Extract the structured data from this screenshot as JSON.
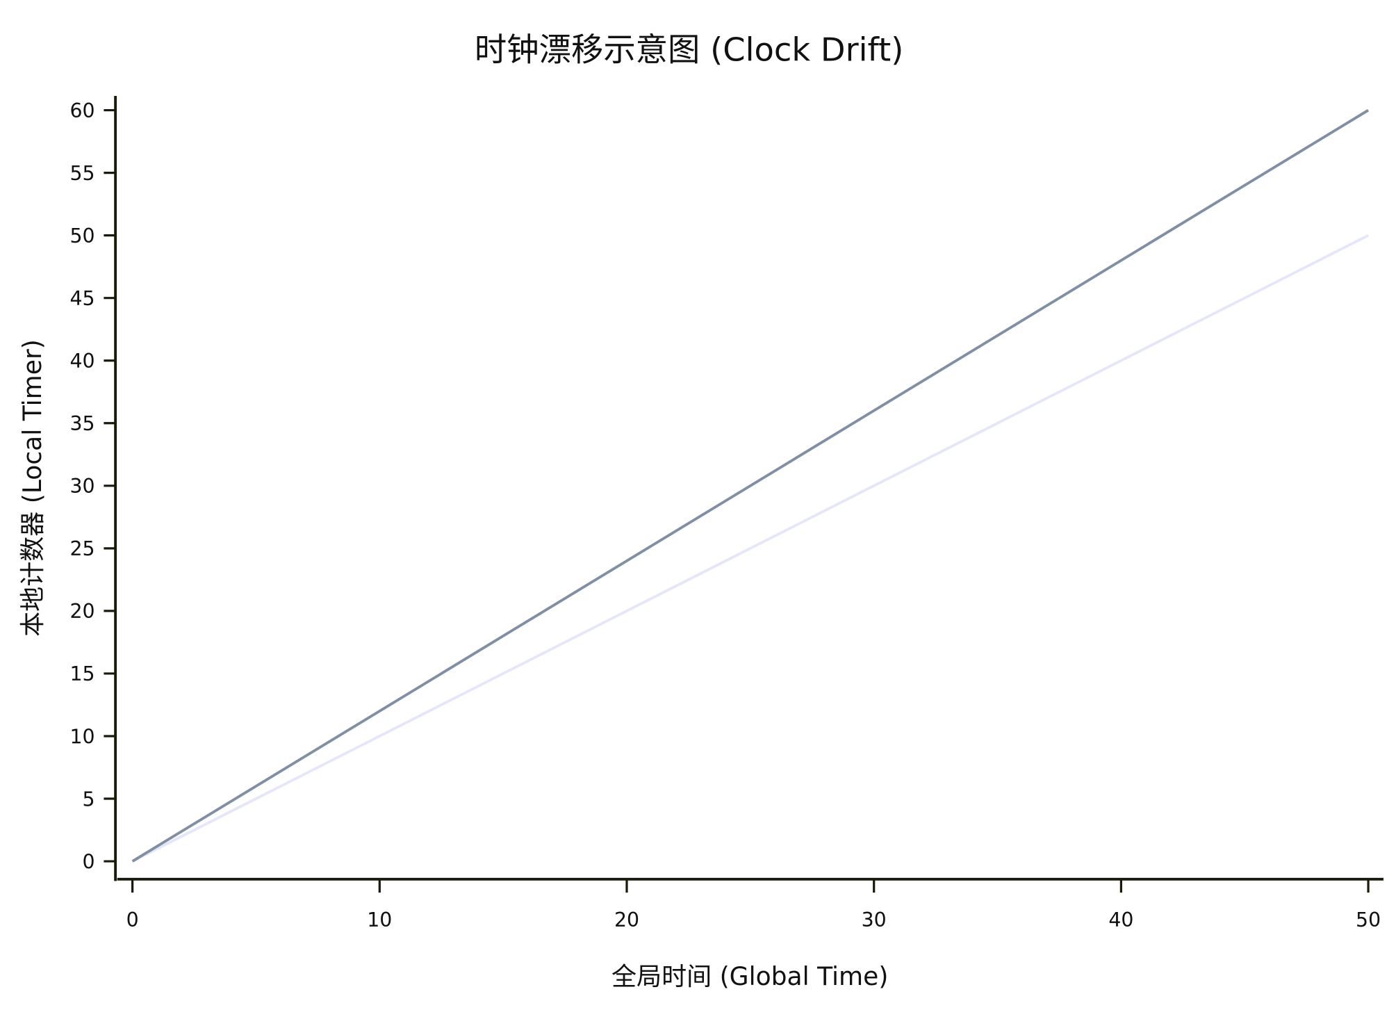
{
  "chart_data": {
    "type": "line",
    "title": "时钟漂移示意图 (Clock Drift)",
    "xlabel": "全局时间 (Global Time)",
    "ylabel": "本地计数器 (Local Timer)",
    "xlim": [
      0,
      50
    ],
    "ylim": [
      0,
      60
    ],
    "xticks": [
      0,
      10,
      20,
      30,
      40,
      50
    ],
    "yticks": [
      0,
      5,
      10,
      15,
      20,
      25,
      30,
      35,
      40,
      45,
      50,
      55,
      60
    ],
    "grid": false,
    "series": [
      {
        "x": [
          0,
          50
        ],
        "y": [
          0,
          60
        ],
        "color": "#8090a4"
      },
      {
        "x": [
          0,
          50
        ],
        "y": [
          0,
          50
        ],
        "color": "#e6e6fa"
      }
    ]
  }
}
